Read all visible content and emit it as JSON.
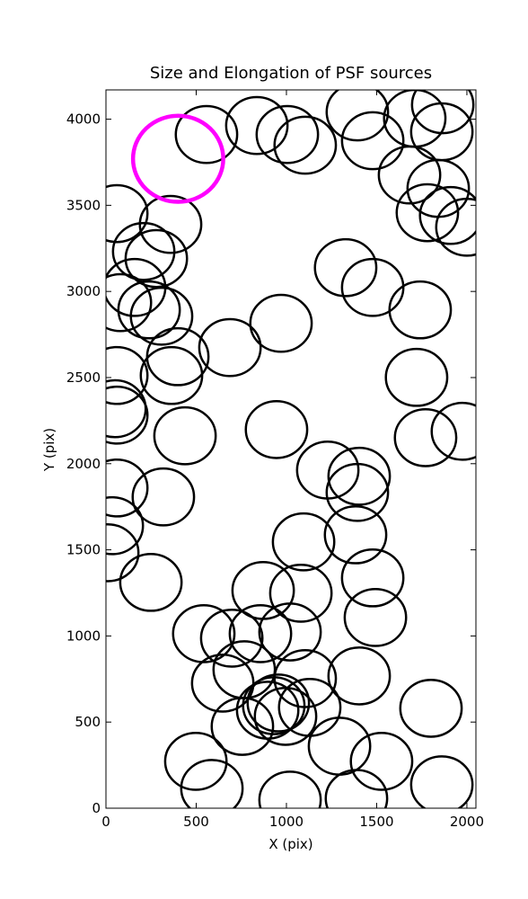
{
  "chart_data": {
    "type": "scatter",
    "title": "Size and Elongation of PSF sources",
    "xlabel": "X (pix)",
    "ylabel": "Y (pix)",
    "xlim": [
      0,
      2050
    ],
    "ylim": [
      0,
      4170
    ],
    "xticks": [
      0,
      500,
      1000,
      1500,
      2000
    ],
    "yticks": [
      0,
      500,
      1000,
      1500,
      2000,
      2500,
      3000,
      3500,
      4000
    ],
    "series": [
      {
        "color": "#000000",
        "ellipse_size": [
          340,
          330
        ],
        "linewidth": 2.5,
        "x": [
          557,
          836,
          1005,
          1104,
          1393,
          1478,
          1711,
          1866,
          1861,
          1682,
          1841,
          1781,
          1910,
          2000,
          60,
          358,
          209,
          279,
          159,
          80,
          239,
          308,
          1328,
          1478,
          1741,
          970,
          687,
          398,
          363,
          60,
          50,
          60,
          438,
          945,
          1721,
          1771,
          1975,
          1229,
          1403,
          1393,
          60,
          318,
          35,
          10,
          249,
          1095,
          1383,
          871,
          1080,
          1478,
          1493,
          542,
          697,
          856,
          1020,
          766,
          647,
          1104,
          1403,
          896,
          955,
          1129,
          756,
          995,
          930,
          1801,
          1294,
          1527,
          498,
          587,
          1020,
          1388,
          1861
        ],
        "values": [
          3911,
          3963,
          3911,
          3849,
          4042,
          3875,
          4005,
          4084,
          3927,
          3676,
          3598,
          3457,
          3441,
          3373,
          3452,
          3389,
          3232,
          3191,
          3023,
          2935,
          2893,
          2856,
          3138,
          3023,
          2893,
          2815,
          2674,
          2621,
          2512,
          2512,
          2319,
          2282,
          2162,
          2198,
          2501,
          2151,
          2188,
          1963,
          1927,
          1833,
          1859,
          1807,
          1640,
          1483,
          1311,
          1546,
          1587,
          1264,
          1248,
          1337,
          1107,
          1013,
          987,
          1013,
          1023,
          804,
          726,
          752,
          768,
          569,
          611,
          585,
          475,
          533,
          595,
          580,
          360,
          272,
          272,
          115,
          47,
          57,
          136
        ]
      },
      {
        "color": "#ff00ff",
        "ellipse_size": [
          500,
          500
        ],
        "linewidth": 4.5,
        "x": [
          400
        ],
        "values": [
          3770
        ]
      }
    ]
  }
}
